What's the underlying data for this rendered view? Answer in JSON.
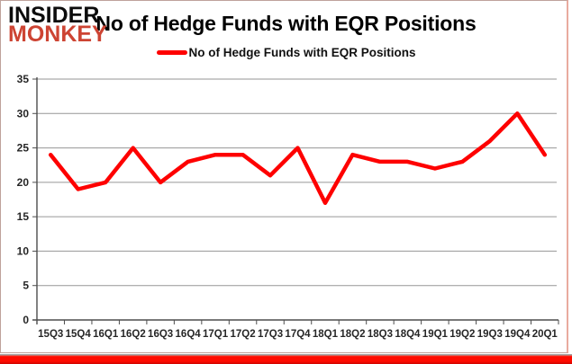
{
  "logo": {
    "line1": "INSIDER",
    "line2": "MONKEY"
  },
  "header": {
    "title": "No of Hedge Funds with EQR Positions"
  },
  "legend": {
    "label": "No of Hedge Funds with EQR Positions"
  },
  "colors": {
    "series_line": "#fe0000",
    "legend_swatch": "#fe0000",
    "gridline": "#969696",
    "axis": "#4d4d4d",
    "axis_label": "#262626",
    "logo_black": "#0c0c0c",
    "logo_red": "#cd4433",
    "bottom_bar_red": "#fe0b00",
    "panel_border": "#bfa29b"
  },
  "chart_data": {
    "type": "line",
    "title": "No of Hedge Funds with EQR Positions",
    "categories": [
      "15Q3",
      "15Q4",
      "16Q1",
      "16Q2",
      "16Q3",
      "16Q4",
      "17Q1",
      "17Q2",
      "17Q3",
      "17Q4",
      "18Q1",
      "18Q2",
      "18Q3",
      "18Q4",
      "19Q1",
      "19Q2",
      "19Q3",
      "19Q4",
      "20Q1"
    ],
    "series": [
      {
        "name": "No of Hedge Funds with EQR Positions",
        "values": [
          24,
          19,
          20,
          25,
          20,
          23,
          24,
          24,
          21,
          25,
          17,
          24,
          23,
          23,
          22,
          23,
          26,
          30,
          24
        ]
      }
    ],
    "xlabel": "",
    "ylabel": "",
    "ylim": [
      0,
      35
    ],
    "ytick_step": 5,
    "yticks": [
      0,
      5,
      10,
      15,
      20,
      25,
      30,
      35
    ],
    "grid": true,
    "legend_position": "top"
  }
}
